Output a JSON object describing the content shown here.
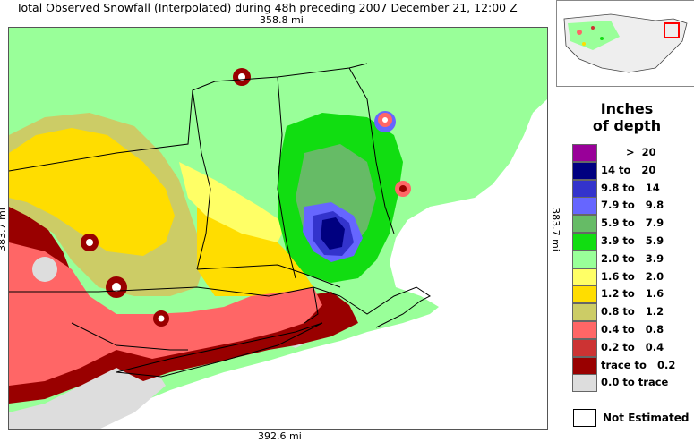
{
  "title": "Total Observed Snowfall (Interpolated) during 48h preceding 2007 December 21, 12:00 Z",
  "scale": {
    "top": "358.8 mi",
    "bottom": "392.6 mi",
    "left": "383.7 mi",
    "right": "383.7 mi"
  },
  "legend": {
    "title_line1": "Inches",
    "title_line2": "of depth",
    "items": [
      {
        "label": "       >  20",
        "color": "#990099"
      },
      {
        "label": "14 to   20",
        "color": "#000080"
      },
      {
        "label": "9.8 to   14",
        "color": "#3333cc"
      },
      {
        "label": "7.9 to   9.8",
        "color": "#6666ff"
      },
      {
        "label": "5.9 to   7.9",
        "color": "#66bb66"
      },
      {
        "label": "3.9 to   5.9",
        "color": "#11dd11"
      },
      {
        "label": "2.0 to   3.9",
        "color": "#99ff99"
      },
      {
        "label": "1.6 to   2.0",
        "color": "#ffff66"
      },
      {
        "label": "1.2 to   1.6",
        "color": "#ffdd00"
      },
      {
        "label": "0.8 to   1.2",
        "color": "#cccc66"
      },
      {
        "label": "0.4 to   0.8",
        "color": "#ff6666"
      },
      {
        "label": "0.2 to   0.4",
        "color": "#cc3333"
      },
      {
        "label": "trace to   0.2",
        "color": "#990000"
      },
      {
        "label": "0.0 to trace",
        "color": "#dddddd"
      }
    ],
    "not_estimated": "Not Estimated"
  },
  "map_colors": {
    "ocean": "#ffffff",
    "none": "#dddddd"
  }
}
